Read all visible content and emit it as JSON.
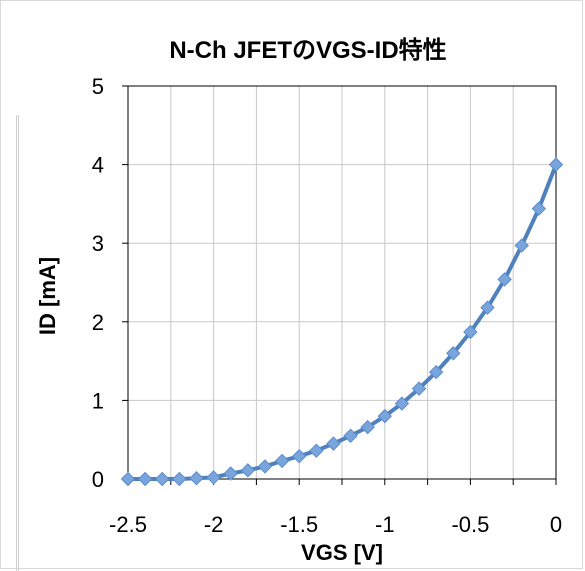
{
  "chart_data": {
    "type": "line",
    "title": "N-Ch JFETのVGS-ID特性",
    "xlabel": "VGS [V]",
    "ylabel": "ID [mA]",
    "xlim": [
      -2.5,
      0
    ],
    "ylim": [
      0,
      5
    ],
    "x_ticks": [
      -2.5,
      -2,
      -1.5,
      -1,
      -0.5,
      0
    ],
    "x_tick_labels": [
      "-2.5",
      "-2",
      "-1.5",
      "-1",
      "-0.5",
      "0"
    ],
    "x_gridlines": [
      -2.5,
      -2.25,
      -2,
      -1.75,
      -1.5,
      -1.25,
      -1,
      -0.75,
      -0.5,
      -0.25,
      0
    ],
    "y_ticks": [
      0,
      1,
      2,
      3,
      4,
      5
    ],
    "y_tick_labels": [
      "0",
      "1",
      "2",
      "3",
      "4",
      "5"
    ],
    "grid": true,
    "legend": "none",
    "marker": "diamond",
    "colors": {
      "line": "#4f81bd",
      "marker": "#7aa5dc",
      "grid": "#c8c8c8",
      "axis": "#000000"
    },
    "series": [
      {
        "x": [
          -2.5,
          -2.4,
          -2.3,
          -2.2,
          -2.1,
          -2.0,
          -1.9,
          -1.8,
          -1.7,
          -1.6,
          -1.5,
          -1.4,
          -1.3,
          -1.2,
          -1.1,
          -1.0,
          -0.9,
          -0.8,
          -0.7,
          -0.6,
          -0.5,
          -0.4,
          -0.3,
          -0.2,
          -0.1,
          0.0
        ],
        "y": [
          0.0,
          0.0,
          0.0,
          0.0,
          0.01,
          0.02,
          0.07,
          0.11,
          0.16,
          0.23,
          0.29,
          0.36,
          0.45,
          0.55,
          0.66,
          0.8,
          0.96,
          1.15,
          1.36,
          1.6,
          1.87,
          2.18,
          2.54,
          2.97,
          3.44,
          4.0
        ]
      }
    ]
  }
}
